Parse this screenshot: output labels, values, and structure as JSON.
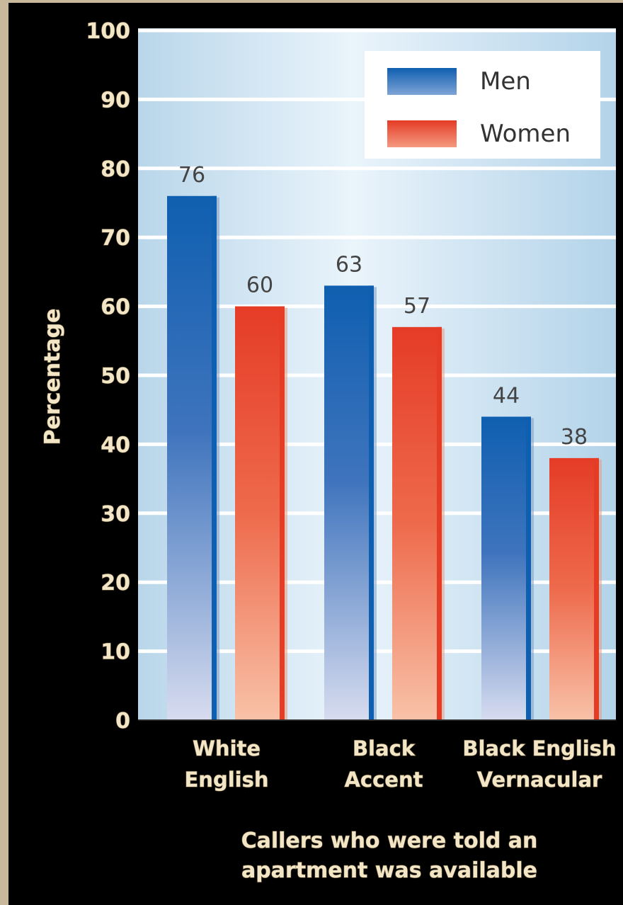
{
  "chart_data": {
    "type": "bar",
    "categories": [
      [
        "White",
        "English"
      ],
      [
        "Black",
        "Accent"
      ],
      [
        "Black English",
        "Vernacular"
      ]
    ],
    "series": [
      {
        "name": "Men",
        "values": [
          76,
          63,
          44
        ],
        "color": "#1565b5"
      },
      {
        "name": "Women",
        "values": [
          60,
          57,
          38
        ],
        "color": "#e8402a"
      }
    ],
    "data_labels": [
      [
        "76",
        "63",
        "44"
      ],
      [
        "60",
        "57",
        "38"
      ]
    ],
    "ylabel": "Percentage",
    "xlabel": [
      "Callers who were told an",
      "apartment was available"
    ],
    "ylim": [
      0,
      100
    ],
    "yticks": [
      "0",
      "10",
      "20",
      "30",
      "40",
      "50",
      "60",
      "70",
      "80",
      "90",
      "100"
    ],
    "grid": true,
    "legend_position": "top-right"
  }
}
